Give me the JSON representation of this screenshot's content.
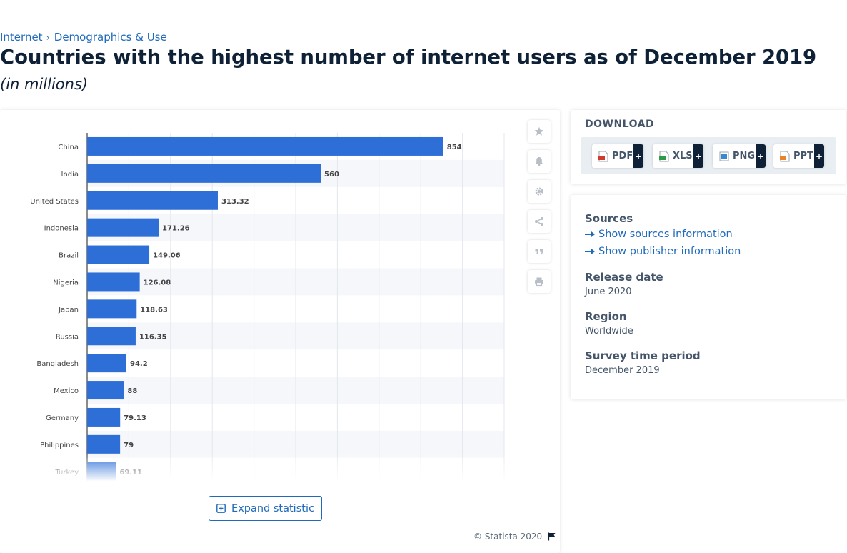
{
  "breadcrumb": {
    "items": [
      "Internet",
      "Demographics & Use"
    ]
  },
  "page": {
    "title": "Countries with the highest number of internet users as of December 2019",
    "subtitle": "(in millions)"
  },
  "colors": {
    "bar": "#2e6fd7",
    "accent": "#1f6ab9",
    "dark": "#0f2137"
  },
  "chart_data": {
    "type": "bar",
    "orientation": "horizontal",
    "categories": [
      "China",
      "India",
      "United States",
      "Indonesia",
      "Brazil",
      "Nigeria",
      "Japan",
      "Russia",
      "Bangladesh",
      "Mexico",
      "Germany",
      "Philippines",
      "Turkey"
    ],
    "values": [
      854,
      560,
      313.32,
      171.26,
      149.06,
      126.08,
      118.63,
      116.35,
      94.2,
      88,
      79.13,
      79,
      69.11
    ],
    "value_labels": [
      "854",
      "560",
      "313.32",
      "171.26",
      "149.06",
      "126.08",
      "118.63",
      "116.35",
      "94.2",
      "88",
      "79.13",
      "79",
      "69.11"
    ],
    "xlim": [
      0,
      1000
    ],
    "grid": true,
    "legend": "none"
  },
  "chart_tools": {
    "icons": [
      "star-icon",
      "bell-icon",
      "gear-icon",
      "share-icon",
      "quote-icon",
      "print-icon"
    ]
  },
  "expand_label": "Expand statistic",
  "copyright": "© Statista 2020",
  "download": {
    "title": "DOWNLOAD",
    "buttons": [
      {
        "label": "PDF",
        "plus": "+"
      },
      {
        "label": "XLS",
        "plus": "+"
      },
      {
        "label": "PNG",
        "plus": "+"
      },
      {
        "label": "PPT",
        "plus": "+"
      }
    ]
  },
  "info": {
    "sources_heading": "Sources",
    "sources_link": "Show sources information",
    "publisher_link": "Show publisher information",
    "release_heading": "Release date",
    "release_value": "June 2020",
    "region_heading": "Region",
    "region_value": "Worldwide",
    "survey_heading": "Survey time period",
    "survey_value": "December 2019"
  }
}
